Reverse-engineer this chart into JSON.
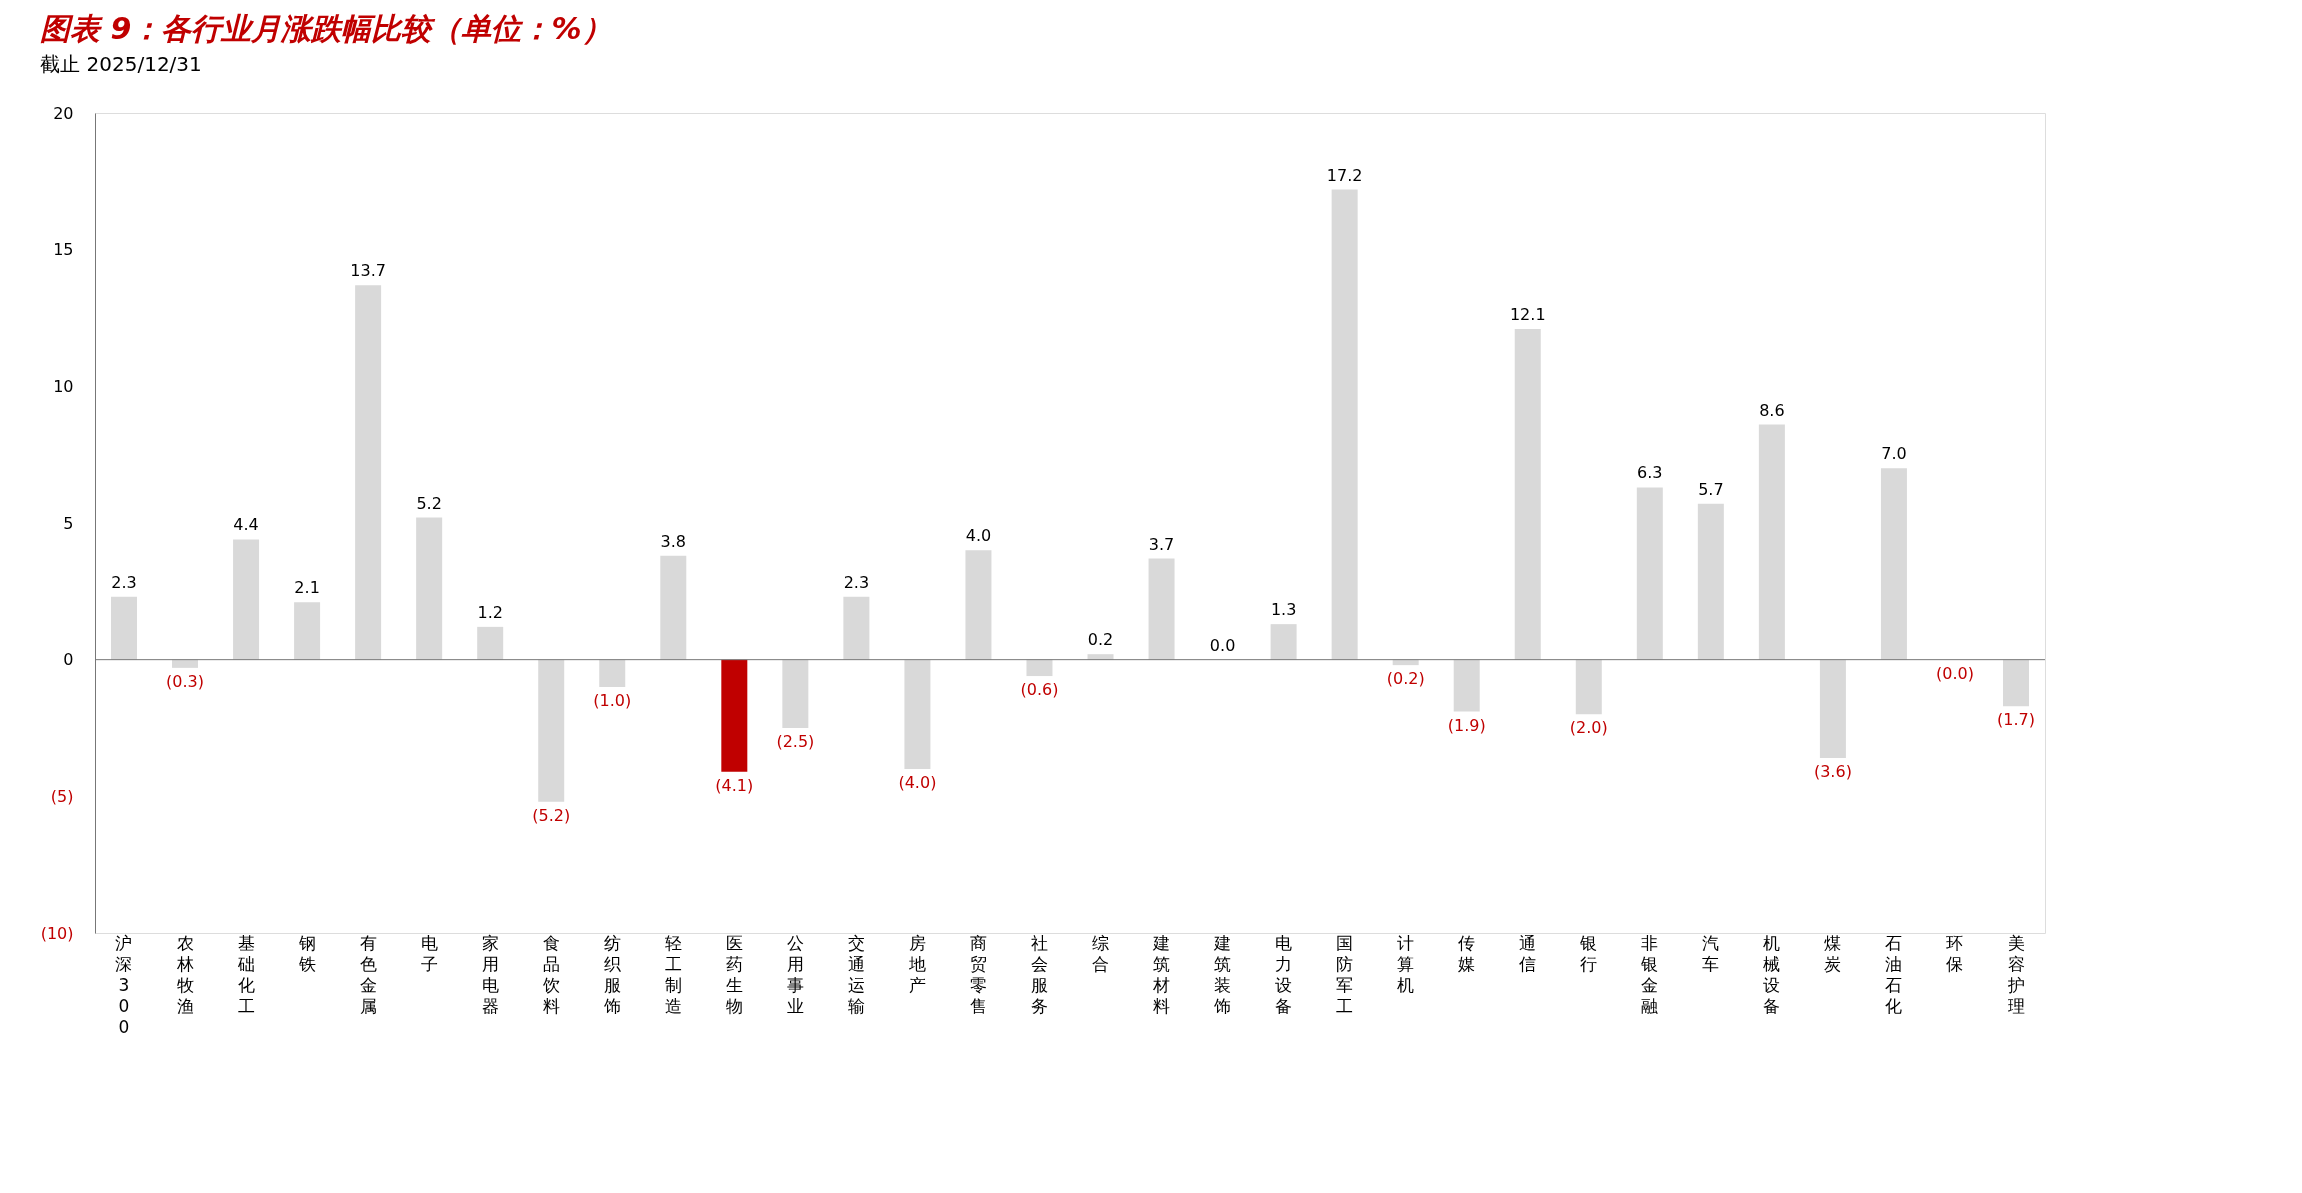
{
  "chart_data": {
    "type": "bar",
    "title": "图表 9：各行业月涨跌幅比较（单位：%）",
    "categories": [
      "沪深300",
      "农林牧渔",
      "基础化工",
      "钢铁",
      "有色金属",
      "电子",
      "家用电器",
      "食品饮料",
      "纺织服饰",
      "轻工制造",
      "医药生物",
      "公用事业",
      "交通运输",
      "房地产",
      "商贸零售",
      "社会服务",
      "综合",
      "建筑材料",
      "建筑装饰",
      "电力设备",
      "国防军工",
      "计算机",
      "传媒",
      "通信",
      "银行",
      "非银金融",
      "汽车",
      "机械设备",
      "煤炭",
      "石油石化",
      "环保",
      "美容护理"
    ],
    "values": [
      2.3,
      -0.3,
      4.4,
      2.1,
      13.7,
      5.2,
      1.2,
      -5.2,
      -1.0,
      3.8,
      -4.1,
      -2.5,
      2.3,
      -4.0,
      4.0,
      -0.6,
      0.2,
      3.7,
      0.0,
      1.3,
      17.2,
      -0.2,
      -1.9,
      12.1,
      -2.0,
      6.3,
      5.7,
      8.6,
      -3.6,
      7.0,
      0.0,
      -1.7
    ],
    "value_labels": [
      "2.3",
      "(0.3)",
      "4.4",
      "2.1",
      "13.7",
      "5.2",
      "1.2",
      "(5.2)",
      "(1.0)",
      "3.8",
      "(4.1)",
      "(2.5)",
      "2.3",
      "(4.0)",
      "4.0",
      "(0.6)",
      "0.2",
      "3.7",
      "0.0",
      "1.3",
      "17.2",
      "(0.2)",
      "(1.9)",
      "12.1",
      "(2.0)",
      "6.3",
      "5.7",
      "8.6",
      "(3.6)",
      "7.0",
      "(0.0)",
      "(1.7)"
    ],
    "colors": [
      "#d9d9d9",
      "#d9d9d9",
      "#d9d9d9",
      "#d9d9d9",
      "#d9d9d9",
      "#d9d9d9",
      "#d9d9d9",
      "#d9d9d9",
      "#d9d9d9",
      "#d9d9d9",
      "#c00000",
      "#d9d9d9",
      "#d9d9d9",
      "#d9d9d9",
      "#d9d9d9",
      "#d9d9d9",
      "#d9d9d9",
      "#d9d9d9",
      "#d9d9d9",
      "#d9d9d9",
      "#d9d9d9",
      "#d9d9d9",
      "#d9d9d9",
      "#d9d9d9",
      "#d9d9d9",
      "#d9d9d9",
      "#d9d9d9",
      "#d9d9d9",
      "#d9d9d9",
      "#d9d9d9",
      "#d9d9d9",
      "#d9d9d9"
    ],
    "ylim": [
      -10,
      20
    ],
    "yticks": [
      {
        "value": -10,
        "label": "(10)"
      },
      {
        "value": -5,
        "label": "(5)"
      },
      0,
      5,
      10,
      15,
      20
    ],
    "annotations": [
      "截止 2025/12/31"
    ]
  }
}
